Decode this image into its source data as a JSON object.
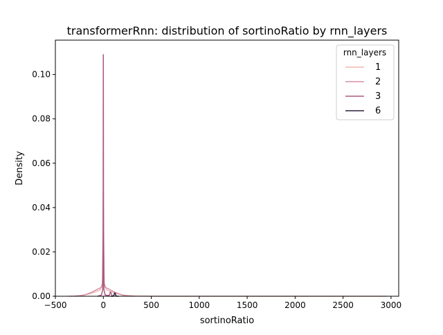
{
  "chart_data": {
    "type": "line",
    "title": "transformerRnn: distribution of sortinoRatio by rnn_layers",
    "xlabel": "sortinoRatio",
    "ylabel": "Density",
    "xlim": [
      -500,
      3080
    ],
    "ylim": [
      0,
      0.1155
    ],
    "x_ticks": [
      -500,
      0,
      500,
      1000,
      1500,
      2000,
      2500,
      3000
    ],
    "x_tick_labels": [
      "−500",
      "0",
      "500",
      "1000",
      "1500",
      "2000",
      "2500",
      "3000"
    ],
    "y_ticks": [
      0.0,
      0.02,
      0.04,
      0.06,
      0.08,
      0.1
    ],
    "y_tick_labels": [
      "0.00",
      "0.02",
      "0.04",
      "0.06",
      "0.08",
      "0.10"
    ],
    "grid": false,
    "legend": {
      "title": "rnn_layers",
      "placement": "top-right"
    },
    "series": [
      {
        "name": "1",
        "color": "#f0b8b0",
        "x": [
          -360,
          -250,
          -150,
          -80,
          -30,
          -10,
          -4,
          0,
          4,
          10,
          30,
          80,
          150,
          250,
          500,
          1000,
          2000,
          2950
        ],
        "y": [
          0.0,
          0.0002,
          0.001,
          0.002,
          0.003,
          0.006,
          0.02,
          0.041,
          0.02,
          0.006,
          0.003,
          0.002,
          0.001,
          0.0002,
          0.0,
          0.0,
          0.0,
          0.0
        ]
      },
      {
        "name": "2",
        "color": "#d58fa6",
        "x": [
          -300,
          -200,
          -120,
          -60,
          -20,
          -8,
          -3,
          0,
          3,
          8,
          20,
          60,
          120,
          200,
          320
        ],
        "y": [
          0.0,
          0.0005,
          0.0018,
          0.0032,
          0.004,
          0.006,
          0.03,
          0.05,
          0.03,
          0.006,
          0.004,
          0.0032,
          0.0018,
          0.0005,
          0.0
        ]
      },
      {
        "name": "3",
        "color": "#a9587e",
        "x": [
          -60,
          -20,
          -6,
          -2,
          -1,
          0,
          1,
          2,
          6,
          20,
          60,
          75,
          90,
          110
        ],
        "y": [
          0.0,
          0.0005,
          0.003,
          0.03,
          0.08,
          0.109,
          0.08,
          0.03,
          0.003,
          0.0005,
          0.0003,
          0.002,
          0.0003,
          0.0
        ]
      },
      {
        "name": "6",
        "color": "#2a1e3c",
        "x": [
          80,
          100,
          110,
          115,
          120,
          125,
          130,
          140,
          160
        ],
        "y": [
          0.0,
          0.0,
          0.0004,
          0.0012,
          0.0015,
          0.0012,
          0.0004,
          0.0,
          0.0
        ]
      }
    ]
  }
}
